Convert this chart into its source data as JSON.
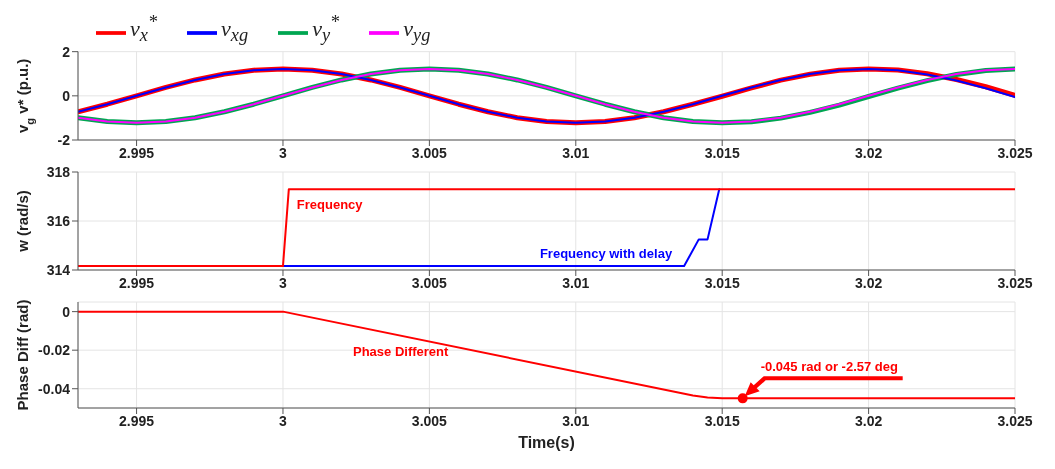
{
  "chart_data": [
    {
      "type": "line",
      "ylabel": "v$_{g}$ v* (p.u.)",
      "legend": "top left",
      "grid": true,
      "x": [
        2.993,
        2.994,
        2.995,
        2.996,
        2.997,
        2.998,
        2.999,
        3.0,
        3.001,
        3.002,
        3.003,
        3.004,
        3.005,
        3.006,
        3.007,
        3.008,
        3.009,
        3.01,
        3.011,
        3.012,
        3.013,
        3.014,
        3.015,
        3.016,
        3.017,
        3.018,
        3.019,
        3.02,
        3.021,
        3.022,
        3.023,
        3.024,
        3.025
      ],
      "xlim": [
        2.993,
        3.025
      ],
      "xticks": [
        2.995,
        3,
        3.005,
        3.01,
        3.015,
        3.02,
        3.025
      ],
      "ylim": [
        -2,
        2
      ],
      "yticks": [
        -2,
        0,
        2
      ],
      "series": [
        {
          "name": "v$_{x}$$^{*}$",
          "color": "#ff0000",
          "values": [
            -0.72,
            -0.38,
            0,
            0.38,
            0.72,
            0.99,
            1.16,
            1.22,
            1.16,
            0.99,
            0.72,
            0.38,
            0,
            -0.38,
            -0.72,
            -0.99,
            -1.16,
            -1.22,
            -1.16,
            -0.99,
            -0.72,
            -0.38,
            -0.02,
            0.36,
            0.71,
            0.98,
            1.16,
            1.22,
            1.17,
            1.0,
            0.74,
            0.41,
            0.02
          ]
        },
        {
          "name": "v$_{xg}$",
          "color": "#0000ff",
          "values": [
            -0.72,
            -0.38,
            0,
            0.38,
            0.72,
            0.99,
            1.16,
            1.22,
            1.16,
            0.99,
            0.72,
            0.38,
            0,
            -0.38,
            -0.72,
            -0.99,
            -1.16,
            -1.22,
            -1.16,
            -0.99,
            -0.72,
            -0.38,
            0,
            0.38,
            0.72,
            0.99,
            1.16,
            1.22,
            1.16,
            0.97,
            0.69,
            0.34,
            -0.06
          ]
        },
        {
          "name": "v$_{y}$$^{*}$",
          "color": "#00a651",
          "values": [
            -0.99,
            -1.16,
            -1.22,
            -1.16,
            -0.99,
            -0.72,
            -0.38,
            0,
            0.38,
            0.72,
            0.99,
            1.16,
            1.22,
            1.16,
            0.99,
            0.72,
            0.38,
            0,
            -0.38,
            -0.72,
            -0.99,
            -1.16,
            -1.22,
            -1.17,
            -1.01,
            -0.75,
            -0.42,
            -0.03,
            0.35,
            0.69,
            0.97,
            1.15,
            1.22
          ]
        },
        {
          "name": "v$_{yg}$",
          "color": "#ff00ff",
          "values": [
            -0.99,
            -1.16,
            -1.22,
            -1.16,
            -0.99,
            -0.72,
            -0.38,
            0,
            0.38,
            0.72,
            0.99,
            1.16,
            1.22,
            1.16,
            0.99,
            0.72,
            0.38,
            0,
            -0.38,
            -0.72,
            -0.99,
            -1.16,
            -1.22,
            -1.16,
            -0.99,
            -0.72,
            -0.38,
            0,
            0.38,
            0.72,
            0.99,
            1.16,
            1.22
          ]
        }
      ]
    },
    {
      "type": "line",
      "ylabel": "w (rad/s)",
      "grid": true,
      "xlim": [
        2.993,
        3.025
      ],
      "xticks": [
        2.995,
        3,
        3.005,
        3.01,
        3.015,
        3.02,
        3.025
      ],
      "ylim": [
        314,
        318
      ],
      "yticks": [
        314,
        316,
        318
      ],
      "series": [
        {
          "name": "Frequency with delay",
          "color": "#0000ff",
          "x": [
            3.0,
            3.0137,
            3.0142,
            3.0145,
            3.0149
          ],
          "values": [
            314.16,
            314.16,
            315.25,
            315.25,
            317.3
          ]
        },
        {
          "name": "Frequency",
          "color": "#ff0000",
          "x": [
            2.993,
            3.0,
            3.0002,
            3.025
          ],
          "values": [
            314.16,
            314.16,
            317.3,
            317.3
          ]
        }
      ]
    },
    {
      "type": "line",
      "xlabel": "Time(s)",
      "ylabel": "Phase Diff (rad)",
      "grid": true,
      "xlim": [
        2.993,
        3.025
      ],
      "xticks": [
        2.995,
        3,
        3.005,
        3.01,
        3.015,
        3.02,
        3.025
      ],
      "ylim": [
        -0.05,
        0.005
      ],
      "yticks": [
        -0.04,
        -0.02,
        0
      ],
      "series": [
        {
          "name": "Phase Different",
          "color": "#ff0000",
          "x": [
            2.993,
            3.0,
            3.014,
            3.0145,
            3.015,
            3.025
          ],
          "values": [
            0,
            0,
            -0.0435,
            -0.0445,
            -0.045,
            -0.045
          ]
        },
        {
          "type": "scatter",
          "marker": "circle",
          "color": "#ff0000",
          "x": [
            3.0157
          ],
          "values": [
            -0.045
          ]
        }
      ],
      "annotations": [
        {
          "text": "-0.045 rad or -2.57 deg",
          "x": 3.0157,
          "y": -0.045
        }
      ]
    }
  ]
}
